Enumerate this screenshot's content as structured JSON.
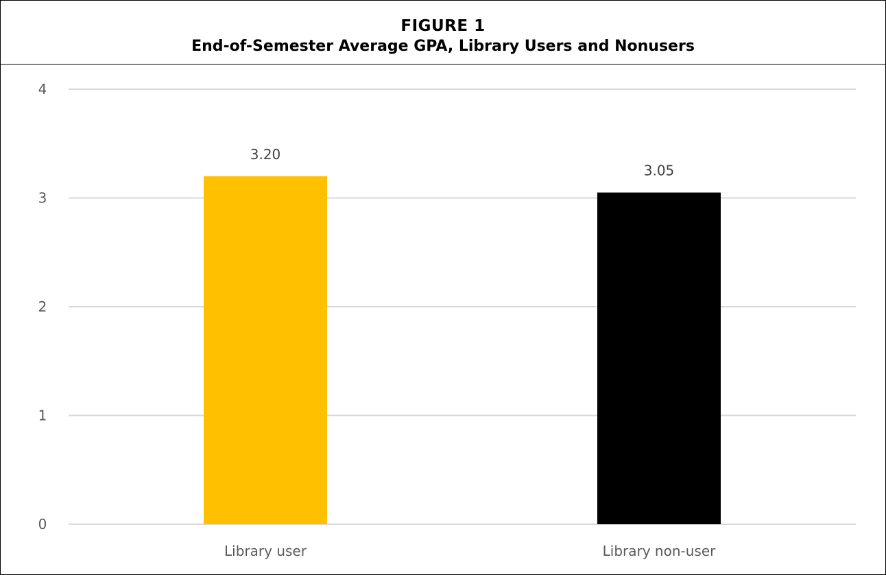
{
  "figure": {
    "label": "FIGURE 1",
    "title": "End-of-Semester Average GPA, Library Users and Nonusers"
  },
  "chart_data": {
    "type": "bar",
    "categories": [
      "Library user",
      "Library non-user"
    ],
    "values": [
      3.2,
      3.05
    ],
    "data_labels": [
      "3.20",
      "3.05"
    ],
    "bar_colors": [
      "#FFC000",
      "#000000"
    ],
    "ylim": [
      0,
      4
    ],
    "yticks": [
      "0",
      "1",
      "2",
      "3",
      "4"
    ],
    "grid": true,
    "legend": "none",
    "xlabel": "",
    "ylabel": "",
    "gridline_color": "#d9d9d9"
  }
}
